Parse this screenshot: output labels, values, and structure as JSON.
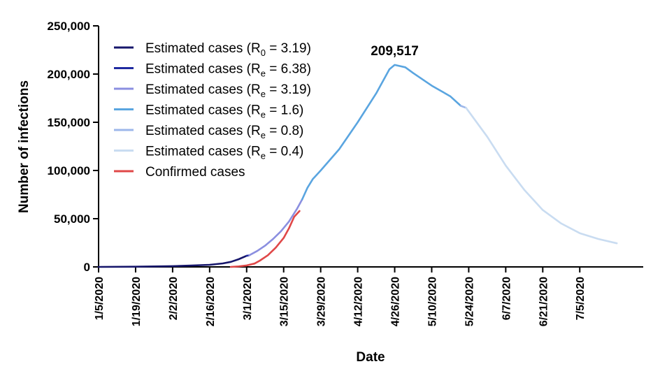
{
  "chart_data": {
    "type": "line",
    "xlabel": "Date",
    "ylabel": "Number of infections",
    "ylim": [
      0,
      250000
    ],
    "xlim": [
      "2020-01-05",
      "2020-07-29"
    ],
    "y_ticks": [
      "0",
      "50,000",
      "100,000",
      "150,000",
      "200,000",
      "250,000"
    ],
    "x_ticks": [
      "1/5/2020",
      "1/19/2020",
      "2/2/2020",
      "2/16/2020",
      "3/1/2020",
      "3/15/2020",
      "3/29/2020",
      "4/12/2020",
      "4/26/2020",
      "5/10/2020",
      "5/24/2020",
      "6/7/2020",
      "6/21/2020",
      "7/5/2020"
    ],
    "annotation": {
      "text": "209,517",
      "x": "2020-04-26",
      "y": 209517
    },
    "legend_position": "top-left",
    "series": [
      {
        "name": "Estimated cases (R0 = 3.19)",
        "label_main": "Estimated cases (R",
        "label_sub": "0",
        "label_tail": " = 3.19)",
        "color": "#16166b",
        "points": [
          [
            "2020-01-05",
            0
          ],
          [
            "2020-01-19",
            200
          ],
          [
            "2020-02-02",
            800
          ],
          [
            "2020-02-09",
            1400
          ],
          [
            "2020-02-16",
            2200
          ],
          [
            "2020-02-21",
            3600
          ],
          [
            "2020-02-24",
            5200
          ],
          [
            "2020-02-27",
            8000
          ],
          [
            "2020-03-01",
            11500
          ]
        ]
      },
      {
        "name": "Estimated cases (Re = 6.38)",
        "label_main": "Estimated cases (R",
        "label_sub": "e",
        "label_tail": " = 6.38)",
        "color": "#1f2aa0",
        "points": [
          [
            "2020-03-01",
            11500
          ],
          [
            "2020-03-02",
            12000
          ]
        ]
      },
      {
        "name": "Estimated cases (Re = 3.19)",
        "label_main": "Estimated cases (R",
        "label_sub": "e",
        "label_tail": " = 3.19)",
        "color": "#8b8fe0",
        "points": [
          [
            "2020-03-02",
            12000
          ],
          [
            "2020-03-05",
            16500
          ],
          [
            "2020-03-08",
            22000
          ],
          [
            "2020-03-11",
            29000
          ],
          [
            "2020-03-14",
            37000
          ],
          [
            "2020-03-17",
            47000
          ],
          [
            "2020-03-20",
            60000
          ],
          [
            "2020-03-22",
            70000
          ]
        ]
      },
      {
        "name": "Estimated cases (Re = 1.6)",
        "label_main": "Estimated cases (R",
        "label_sub": "e",
        "label_tail": " = 1.6)",
        "color": "#5aa5e0",
        "points": [
          [
            "2020-03-22",
            70000
          ],
          [
            "2020-03-24",
            82000
          ],
          [
            "2020-03-26",
            91000
          ],
          [
            "2020-03-29",
            100000
          ],
          [
            "2020-04-05",
            122000
          ],
          [
            "2020-04-12",
            150000
          ],
          [
            "2020-04-19",
            180000
          ],
          [
            "2020-04-24",
            205000
          ],
          [
            "2020-04-26",
            209517
          ],
          [
            "2020-04-30",
            207000
          ],
          [
            "2020-05-03",
            201000
          ],
          [
            "2020-05-10",
            188000
          ],
          [
            "2020-05-17",
            177000
          ],
          [
            "2020-05-21",
            167000
          ]
        ]
      },
      {
        "name": "Estimated cases (Re = 0.8)",
        "label_main": "Estimated cases (R",
        "label_sub": "e",
        "label_tail": " = 0.8)",
        "color": "#9db7ea",
        "points": [
          [
            "2020-05-21",
            167000
          ],
          [
            "2020-05-23",
            165000
          ]
        ]
      },
      {
        "name": "Estimated cases (Re = 0.4)",
        "label_main": "Estimated cases (R",
        "label_sub": "e",
        "label_tail": " = 0.4)",
        "color": "#c9dcf1",
        "points": [
          [
            "2020-05-23",
            165000
          ],
          [
            "2020-05-31",
            135000
          ],
          [
            "2020-06-07",
            105000
          ],
          [
            "2020-06-14",
            80000
          ],
          [
            "2020-06-21",
            59000
          ],
          [
            "2020-06-28",
            45000
          ],
          [
            "2020-07-05",
            35000
          ],
          [
            "2020-07-12",
            29000
          ],
          [
            "2020-07-19",
            24500
          ]
        ]
      },
      {
        "name": "Confirmed cases",
        "label_main": "Confirmed cases",
        "label_sub": "",
        "label_tail": "",
        "color": "#e04848",
        "points": [
          [
            "2020-02-24",
            0
          ],
          [
            "2020-02-27",
            500
          ],
          [
            "2020-03-01",
            1500
          ],
          [
            "2020-03-04",
            3500
          ],
          [
            "2020-03-06",
            6500
          ],
          [
            "2020-03-09",
            12000
          ],
          [
            "2020-03-12",
            20000
          ],
          [
            "2020-03-15",
            30000
          ],
          [
            "2020-03-17",
            40000
          ],
          [
            "2020-03-19",
            52000
          ],
          [
            "2020-03-21",
            58000
          ]
        ]
      }
    ]
  }
}
